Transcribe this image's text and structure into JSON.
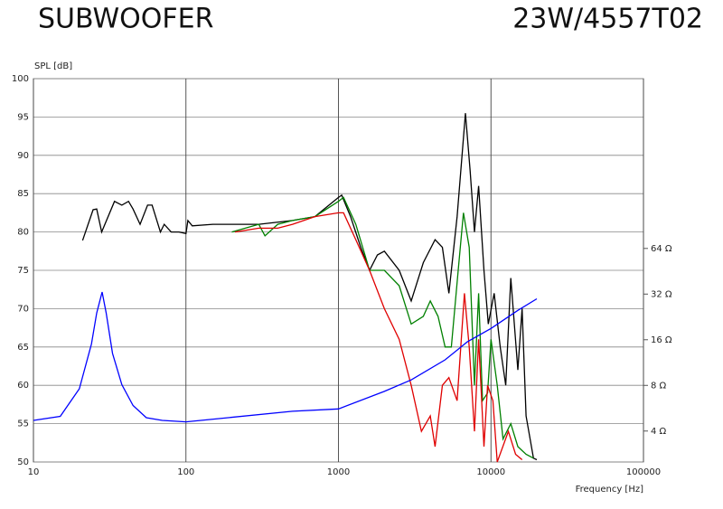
{
  "chart_data": {
    "type": "line",
    "title": "SUBWOOFER",
    "subtitle": "23W/4557T02",
    "y_label": "SPL [dB]",
    "x_label": "Frequency [Hz]",
    "xscale": "log",
    "xlim": [
      10,
      100000
    ],
    "xticks": [
      10,
      100,
      1000,
      10000,
      100000
    ],
    "ylim": [
      50,
      100
    ],
    "yticks": [
      50,
      55,
      60,
      65,
      70,
      75,
      80,
      85,
      90,
      95,
      100
    ],
    "y2scale": "log",
    "y2lim": [
      2.5,
      843
    ],
    "y2ticks": [
      {
        "value": 4,
        "label": "4 Ω"
      },
      {
        "value": 8,
        "label": "8 Ω"
      },
      {
        "value": 16,
        "label": "16 Ω"
      },
      {
        "value": 32,
        "label": "32 Ω"
      },
      {
        "value": 64,
        "label": "64 Ω"
      }
    ],
    "grid": true,
    "series": [
      {
        "color": "#000000",
        "x": [
          21,
          24.6,
          26,
          28,
          34,
          38,
          42,
          45,
          50,
          56,
          60,
          68,
          72,
          80,
          90,
          100,
          103,
          110,
          150,
          200,
          300,
          500,
          700,
          1000,
          1050,
          1200,
          1400,
          1600,
          1800,
          2000,
          2500,
          3000,
          3600,
          4300,
          4800,
          5300,
          6000,
          6800,
          7300,
          7800,
          8300,
          9000,
          9600,
          10500,
          11500,
          12500,
          13500,
          15000,
          16000,
          17000,
          19000,
          20000
        ],
        "values": [
          78.9,
          82.9,
          83,
          80,
          84,
          83.5,
          84,
          83,
          81,
          83.5,
          83.5,
          80,
          81,
          80,
          80,
          79.8,
          81.5,
          80.8,
          81,
          81,
          81,
          81.5,
          82,
          84.5,
          84.8,
          82,
          78,
          75,
          77,
          77.5,
          75,
          71,
          76,
          79,
          78,
          72,
          82,
          95.5,
          88,
          80,
          86,
          75,
          68,
          72,
          65,
          60,
          74,
          62,
          70,
          56,
          50.5,
          50.3
        ]
      },
      {
        "color": "#008000",
        "x": [
          200,
          300,
          330,
          400,
          500,
          700,
          1000,
          1080,
          1300,
          1600,
          2000,
          2500,
          3000,
          3600,
          4000,
          4500,
          5000,
          5500,
          6100,
          6600,
          7200,
          7800,
          8300,
          8800,
          9500,
          10000,
          11000,
          12000,
          13500,
          15000,
          17000,
          19000
        ],
        "values": [
          80,
          81,
          79.5,
          81,
          81.5,
          82,
          84,
          84.5,
          81,
          75,
          75,
          73,
          68,
          69,
          71,
          69,
          65,
          65,
          75,
          82.5,
          78,
          60,
          72,
          58,
          59,
          66,
          60,
          53,
          55,
          52,
          51,
          50.5
        ]
      },
      {
        "color": "#e00000",
        "x": [
          210,
          300,
          400,
          500,
          700,
          1000,
          1080,
          1300,
          1600,
          2000,
          2500,
          3000,
          3500,
          4000,
          4300,
          4800,
          5300,
          6000,
          6700,
          7200,
          7800,
          8300,
          9000,
          9500,
          10300,
          11000,
          13000,
          14500,
          16000
        ],
        "values": [
          80,
          80.5,
          80.5,
          81,
          82,
          82.5,
          82.5,
          79,
          75,
          70,
          66,
          60,
          54,
          56,
          52,
          60,
          61,
          58,
          72,
          65,
          54,
          66,
          52,
          60,
          58,
          50,
          54,
          51,
          50.3
        ]
      },
      {
        "color": "#0000ff",
        "axis": "y2",
        "x": [
          10,
          15,
          20,
          24,
          26,
          28.2,
          30,
          33,
          38,
          45,
          55,
          70,
          100,
          500,
          1000,
          2000,
          3000,
          5000,
          7000,
          10000,
          15000,
          20000
        ],
        "values": [
          4.7,
          5.0,
          7.6,
          15,
          24,
          33,
          24,
          13,
          8.1,
          5.9,
          4.9,
          4.7,
          4.6,
          5.4,
          5.6,
          7.3,
          8.7,
          11.8,
          15.5,
          19,
          25,
          29.8
        ]
      }
    ]
  }
}
